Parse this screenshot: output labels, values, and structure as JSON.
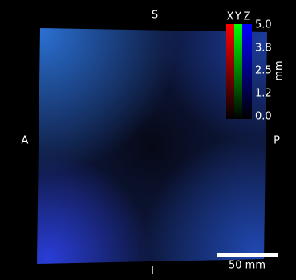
{
  "orientation": {
    "top": "S",
    "bottom": "I",
    "left": "A",
    "right": "P"
  },
  "colorbar": {
    "channels": [
      "X",
      "Y",
      "Z"
    ],
    "ticks": [
      "5.0",
      "3.8",
      "2.5",
      "1.2",
      "0.0"
    ],
    "unit": "mm"
  },
  "scale_bar": {
    "label": "50 mm"
  }
}
